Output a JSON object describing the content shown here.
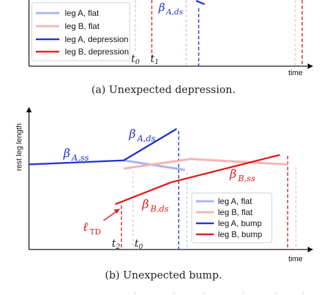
{
  "panel_a": {
    "caption": "(a) Unexpected depression.",
    "xlabel": "time",
    "legend": [
      "leg A, flat",
      "leg B, flat",
      "leg A, depression",
      "leg B, depression"
    ],
    "annotations": {
      "beta_ads": "A,ds",
      "t0": "0",
      "t1": "1"
    }
  },
  "panel_b": {
    "caption": "(b) Unexpected bump.",
    "xlabel": "time",
    "ylabel": "rest leg length",
    "legend": [
      "leg A, flat",
      "leg B, flat",
      "leg A, bump",
      "leg B, bump"
    ],
    "annotations": {
      "beta_ass": "A,ss",
      "beta_ads": "A,ds",
      "beta_bds": "B,ds",
      "beta_bss": "B,ss",
      "l_td": "TD",
      "t2": "2",
      "t0": "0"
    }
  },
  "colors": {
    "leg_a": "#1f2fd6",
    "leg_b": "#e01b1b",
    "leg_a_flat": "#aab4f0",
    "leg_b_flat": "#f6b3b3"
  },
  "chart_data": [
    {
      "type": "line",
      "title": "",
      "xlabel": "time",
      "ylabel": "",
      "series": [
        {
          "name": "leg A, flat",
          "x": [],
          "y": []
        },
        {
          "name": "leg B, flat",
          "x": [],
          "y": []
        },
        {
          "name": "leg A, depression",
          "x": [
            6.0,
            6.3
          ],
          "y": [
            9.3,
            8.8
          ]
        },
        {
          "name": "leg B, depression",
          "x": [],
          "y": []
        }
      ],
      "xlim": [
        0,
        10
      ],
      "ylim": [
        0,
        10
      ],
      "legend": "bottom-left"
    },
    {
      "type": "line",
      "title": "",
      "xlabel": "time",
      "ylabel": "rest leg length",
      "series": [
        {
          "name": "leg A, flat",
          "x": [
            3.4,
            5.6
          ],
          "y": [
            6.5,
            5.8
          ]
        },
        {
          "name": "leg B, flat",
          "x": [
            3.4,
            5.8,
            9.3
          ],
          "y": [
            5.9,
            6.6,
            6.2
          ]
        },
        {
          "name": "leg A, bump",
          "x": [
            0.0,
            3.4,
            5.3
          ],
          "y": [
            6.2,
            6.5,
            8.8
          ]
        },
        {
          "name": "leg B, bump",
          "x": [
            3.1,
            5.1,
            9.0
          ],
          "y": [
            3.3,
            4.9,
            6.9
          ]
        }
      ],
      "xlim": [
        0,
        10
      ],
      "ylim": [
        0,
        10
      ],
      "legend": "bottom-right"
    }
  ]
}
